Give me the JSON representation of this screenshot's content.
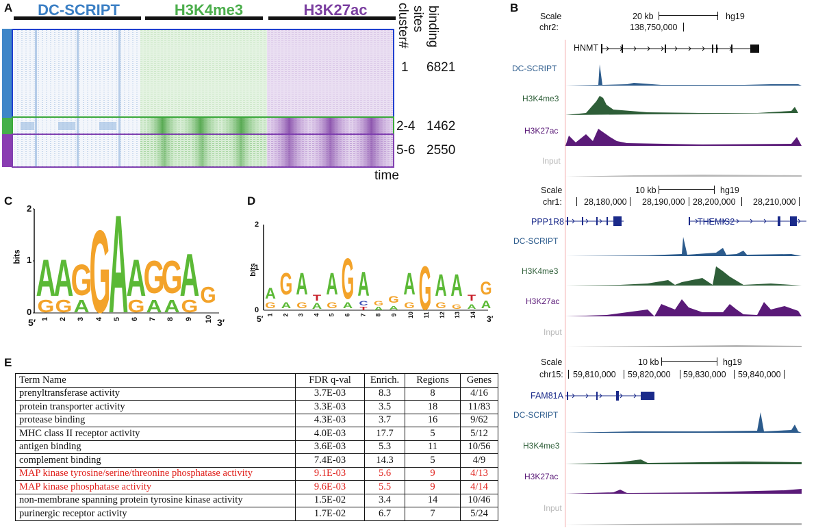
{
  "panels": {
    "a": "A",
    "b": "B",
    "c": "C",
    "d": "D",
    "e": "E"
  },
  "heatmap": {
    "titles": [
      "DC-SCRIPT",
      "H3K4me3",
      "H3K27ac"
    ],
    "title_colors": [
      "#3b7fc4",
      "#4cae4c",
      "#7b3fa0"
    ],
    "cluster_header": "cluster#",
    "sites_header": "binding sites",
    "clusters": [
      {
        "label": "1",
        "sites": "6821"
      },
      {
        "label": "2-4",
        "sites": "1462"
      },
      {
        "label": "5-6",
        "sites": "2550"
      }
    ],
    "time_label": "time"
  },
  "logo_c": {
    "ylabel": "bits",
    "yticks": [
      "0",
      "1",
      "2"
    ],
    "positions": [
      "1",
      "2",
      "3",
      "4",
      "5",
      "6",
      "7",
      "8",
      "9",
      "10"
    ],
    "five": "5′",
    "three": "3′"
  },
  "logo_d": {
    "ylabel": "bits",
    "yticks": [
      "0",
      "1",
      "2"
    ],
    "positions": [
      "1",
      "2",
      "3",
      "4",
      "5",
      "6",
      "7",
      "8",
      "9",
      "10",
      "11",
      "12",
      "13",
      "14"
    ],
    "five": "5′",
    "three": "3′"
  },
  "table": {
    "headers": [
      "Term Name",
      "FDR q-val",
      "Enrich.",
      "Regions",
      "Genes"
    ],
    "rows": [
      {
        "term": "prenyltransferase activity",
        "fdr": "3.7E-03",
        "enrich": "8.3",
        "regions": "8",
        "genes": "4/16",
        "highlight": false
      },
      {
        "term": "protein transporter activity",
        "fdr": "3.3E-03",
        "enrich": "3.5",
        "regions": "18",
        "genes": "11/83",
        "highlight": false
      },
      {
        "term": "protease binding",
        "fdr": "4.3E-03",
        "enrich": "3.7",
        "regions": "16",
        "genes": "9/62",
        "highlight": false
      },
      {
        "term": "MHC class II receptor activity",
        "fdr": "4.0E-03",
        "enrich": "17.7",
        "regions": "5",
        "genes": "5/12",
        "highlight": false
      },
      {
        "term": "antigen binding",
        "fdr": "3.6E-03",
        "enrich": "5.3",
        "regions": "11",
        "genes": "10/56",
        "highlight": false
      },
      {
        "term": "complement binding",
        "fdr": "7.4E-03",
        "enrich": "14.3",
        "regions": "5",
        "genes": "4/9",
        "highlight": false
      },
      {
        "term": "MAP kinase tyrosine/serine/threonine phosphatase activity",
        "fdr": "9.1E-03",
        "enrich": "5.6",
        "regions": "9",
        "genes": "4/13",
        "highlight": true
      },
      {
        "term": "MAP kinase phosphatase activity",
        "fdr": "9.6E-03",
        "enrich": "5.5",
        "regions": "9",
        "genes": "4/14",
        "highlight": true
      },
      {
        "term": "non-membrane spanning protein tyrosine kinase activity",
        "fdr": "1.5E-02",
        "enrich": "3.4",
        "regions": "14",
        "genes": "10/46",
        "highlight": false
      },
      {
        "term": "purinergic receptor activity",
        "fdr": "1.7E-02",
        "enrich": "6.7",
        "regions": "7",
        "genes": "5/24",
        "highlight": false
      }
    ]
  },
  "browser": {
    "track_colors": {
      "dc": "#2c5b8c",
      "k4": "#2e5e38",
      "k27": "#5a1a78",
      "input": "#b8b8b8"
    },
    "views": [
      {
        "scale_label": "Scale",
        "chr_label": "chr2:",
        "scale_value": "20 kb",
        "assembly": "hg19",
        "coords": [
          "138,750,000"
        ],
        "genes": [
          "HNMT"
        ],
        "tracks": [
          "DC-SCRIPT",
          "H3K4me3",
          "H3K27ac",
          "Input"
        ]
      },
      {
        "scale_label": "Scale",
        "chr_label": "chr1:",
        "scale_value": "10 kb",
        "assembly": "hg19",
        "coords": [
          "28,180,000",
          "28,190,000",
          "28,200,000",
          "28,210,000"
        ],
        "genes": [
          "PPP1R8",
          "THEMIS2"
        ],
        "tracks": [
          "DC-SCRIPT",
          "H3K4me3",
          "H3K27ac",
          "Input"
        ]
      },
      {
        "scale_label": "Scale",
        "chr_label": "chr15:",
        "scale_value": "10 kb",
        "assembly": "hg19",
        "coords": [
          "59,810,000",
          "59,820,000",
          "59,830,000",
          "59,840,000"
        ],
        "genes": [
          "FAM81A"
        ],
        "tracks": [
          "DC-SCRIPT",
          "H3K4me3",
          "H3K27ac",
          "Input"
        ]
      }
    ]
  }
}
